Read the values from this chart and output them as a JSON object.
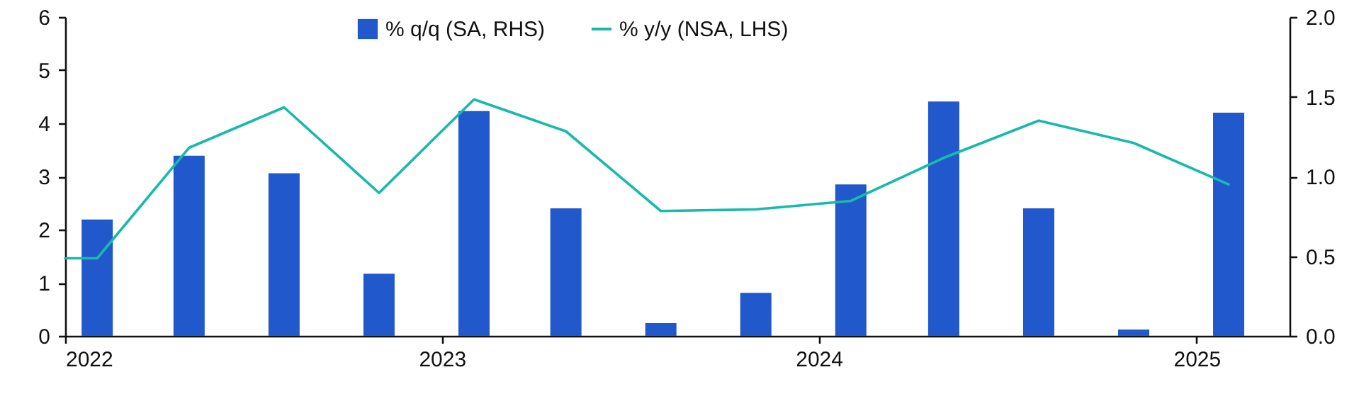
{
  "chart_data": {
    "type": "bar",
    "xlim": [
      "2022-01-01",
      "2025-04-01"
    ],
    "xticks": [
      "2022",
      "2023",
      "2024",
      "2025"
    ],
    "ylim": [
      0,
      6
    ],
    "yticks": [
      0,
      1,
      2,
      3,
      4,
      5,
      6
    ],
    "y2lim": [
      0,
      2
    ],
    "y2ticks": [
      {
        "value": 0,
        "label": "0.0"
      },
      0.5,
      {
        "value": 1,
        "label": "1.0"
      },
      1.5,
      {
        "value": 2,
        "label": "2.0"
      }
    ],
    "legend": "top",
    "line_style": "solid",
    "series": [
      {
        "name": "% q/q (SA, RHS)",
        "axis": "y2",
        "color": "#2158cc",
        "x": [
          "2022-02-01",
          "2022-05-01",
          "2022-08-01",
          "2022-11-01",
          "2023-02-01",
          "2023-05-01",
          "2023-08-01",
          "2023-11-01",
          "2024-02-01",
          "2024-05-01",
          "2024-08-01",
          "2024-11-01",
          "2025-02-01"
        ],
        "values": [
          0.73,
          1.13,
          1.02,
          0.39,
          1.41,
          0.8,
          0.08,
          0.27,
          0.95,
          1.47,
          0.8,
          0.04,
          1.4
        ]
      },
      {
        "name": "% y/y (NSA, LHS)",
        "type": "line",
        "axis": "y",
        "color": "#19b9ab",
        "x": [
          "2022-01-01",
          "2022-02-01",
          "2022-05-01",
          "2022-08-01",
          "2022-11-01",
          "2023-02-01",
          "2023-05-01",
          "2023-08-01",
          "2023-11-01",
          "2024-02-01",
          "2024-05-01",
          "2024-08-01",
          "2024-11-01",
          "2025-02-01"
        ],
        "values": [
          1.46,
          1.46,
          3.54,
          4.3,
          2.69,
          4.45,
          3.85,
          2.35,
          2.38,
          2.54,
          3.35,
          4.05,
          3.63,
          2.85
        ]
      }
    ]
  }
}
